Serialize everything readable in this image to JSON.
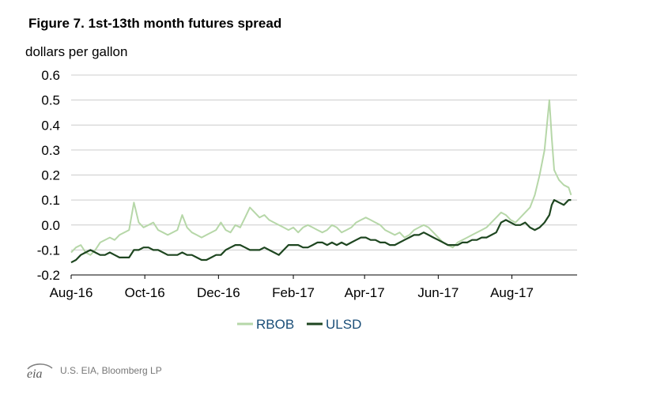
{
  "source": {
    "logo_text": "eia",
    "text": "U.S. EIA, Bloomberg LP"
  },
  "chart_data": {
    "type": "line",
    "title": "Figure 7. 1st-13th month futures spread",
    "ylabel": "dollars per gallon",
    "xlabel": "",
    "ylim": [
      -0.2,
      0.6
    ],
    "yticks": [
      -0.2,
      -0.1,
      0.0,
      0.1,
      0.2,
      0.3,
      0.4,
      0.5,
      0.6
    ],
    "ytick_labels": [
      "-0.2",
      "-0.1",
      "0.0",
      "0.1",
      "0.2",
      "0.3",
      "0.4",
      "0.5",
      "0.6"
    ],
    "xlim": [
      0,
      419
    ],
    "xticks": [
      0,
      61,
      122,
      184,
      243,
      304,
      365
    ],
    "xtick_labels": [
      "Aug-16",
      "Oct-16",
      "Dec-16",
      "Feb-17",
      "Apr-17",
      "Jun-17",
      "Aug-17"
    ],
    "x_unit": "days since Aug 1, 2016",
    "grid": "horizontal",
    "legend": "bottom-center",
    "series": [
      {
        "name": "RBOB",
        "color": "#b6d7a8",
        "x": [
          0,
          4,
          8,
          12,
          16,
          20,
          24,
          28,
          32,
          36,
          40,
          44,
          48,
          52,
          56,
          60,
          64,
          68,
          72,
          76,
          80,
          84,
          88,
          92,
          96,
          100,
          104,
          108,
          112,
          116,
          120,
          124,
          128,
          132,
          136,
          140,
          144,
          148,
          152,
          156,
          160,
          164,
          168,
          172,
          176,
          180,
          184,
          188,
          192,
          196,
          200,
          204,
          208,
          212,
          216,
          220,
          224,
          228,
          232,
          236,
          240,
          244,
          248,
          252,
          256,
          260,
          264,
          268,
          272,
          276,
          280,
          284,
          288,
          292,
          296,
          300,
          304,
          308,
          312,
          316,
          320,
          324,
          328,
          332,
          336,
          340,
          344,
          348,
          352,
          356,
          360,
          364,
          368,
          372,
          376,
          380,
          384,
          388,
          392,
          396,
          398,
          400,
          402,
          404,
          408,
          412,
          414
        ],
        "values": [
          -0.11,
          -0.09,
          -0.08,
          -0.11,
          -0.12,
          -0.1,
          -0.07,
          -0.06,
          -0.05,
          -0.06,
          -0.04,
          -0.03,
          -0.02,
          0.09,
          0.01,
          -0.01,
          0.0,
          0.01,
          -0.02,
          -0.03,
          -0.04,
          -0.03,
          -0.02,
          0.04,
          -0.01,
          -0.03,
          -0.04,
          -0.05,
          -0.04,
          -0.03,
          -0.02,
          0.01,
          -0.02,
          -0.03,
          0.0,
          -0.01,
          0.03,
          0.07,
          0.05,
          0.03,
          0.04,
          0.02,
          0.01,
          0.0,
          -0.01,
          -0.02,
          -0.01,
          -0.03,
          -0.01,
          0.0,
          -0.01,
          -0.02,
          -0.03,
          -0.02,
          0.0,
          -0.01,
          -0.03,
          -0.02,
          -0.01,
          0.01,
          0.02,
          0.03,
          0.02,
          0.01,
          0.0,
          -0.02,
          -0.03,
          -0.04,
          -0.03,
          -0.05,
          -0.04,
          -0.02,
          -0.01,
          0.0,
          -0.01,
          -0.03,
          -0.05,
          -0.07,
          -0.08,
          -0.09,
          -0.07,
          -0.06,
          -0.05,
          -0.04,
          -0.03,
          -0.02,
          -0.01,
          0.01,
          0.03,
          0.05,
          0.04,
          0.02,
          0.01,
          0.03,
          0.05,
          0.07,
          0.12,
          0.2,
          0.3,
          0.5,
          0.35,
          0.22,
          0.2,
          0.18,
          0.16,
          0.15,
          0.12
        ]
      },
      {
        "name": "ULSD",
        "color": "#1e4620",
        "x": [
          0,
          4,
          8,
          12,
          16,
          20,
          24,
          28,
          32,
          36,
          40,
          44,
          48,
          52,
          56,
          60,
          64,
          68,
          72,
          76,
          80,
          84,
          88,
          92,
          96,
          100,
          104,
          108,
          112,
          116,
          120,
          124,
          128,
          132,
          136,
          140,
          144,
          148,
          152,
          156,
          160,
          164,
          168,
          172,
          176,
          180,
          184,
          188,
          192,
          196,
          200,
          204,
          208,
          212,
          216,
          220,
          224,
          228,
          232,
          236,
          240,
          244,
          248,
          252,
          256,
          260,
          264,
          268,
          272,
          276,
          280,
          284,
          288,
          292,
          296,
          300,
          304,
          308,
          312,
          316,
          320,
          324,
          328,
          332,
          336,
          340,
          344,
          348,
          352,
          356,
          360,
          364,
          368,
          372,
          376,
          380,
          384,
          388,
          392,
          396,
          398,
          400,
          404,
          408,
          412,
          414
        ],
        "values": [
          -0.15,
          -0.14,
          -0.12,
          -0.11,
          -0.1,
          -0.11,
          -0.12,
          -0.12,
          -0.11,
          -0.12,
          -0.13,
          -0.13,
          -0.13,
          -0.1,
          -0.1,
          -0.09,
          -0.09,
          -0.1,
          -0.1,
          -0.11,
          -0.12,
          -0.12,
          -0.12,
          -0.11,
          -0.12,
          -0.12,
          -0.13,
          -0.14,
          -0.14,
          -0.13,
          -0.12,
          -0.12,
          -0.1,
          -0.09,
          -0.08,
          -0.08,
          -0.09,
          -0.1,
          -0.1,
          -0.1,
          -0.09,
          -0.1,
          -0.11,
          -0.12,
          -0.1,
          -0.08,
          -0.08,
          -0.08,
          -0.09,
          -0.09,
          -0.08,
          -0.07,
          -0.07,
          -0.08,
          -0.07,
          -0.08,
          -0.07,
          -0.08,
          -0.07,
          -0.06,
          -0.05,
          -0.05,
          -0.06,
          -0.06,
          -0.07,
          -0.07,
          -0.08,
          -0.08,
          -0.07,
          -0.06,
          -0.05,
          -0.04,
          -0.04,
          -0.03,
          -0.04,
          -0.05,
          -0.06,
          -0.07,
          -0.08,
          -0.08,
          -0.08,
          -0.07,
          -0.07,
          -0.06,
          -0.06,
          -0.05,
          -0.05,
          -0.04,
          -0.03,
          0.01,
          0.02,
          0.01,
          0.0,
          0.0,
          0.01,
          -0.01,
          -0.02,
          -0.01,
          0.01,
          0.04,
          0.08,
          0.1,
          0.09,
          0.08,
          0.1,
          0.1
        ]
      }
    ]
  }
}
